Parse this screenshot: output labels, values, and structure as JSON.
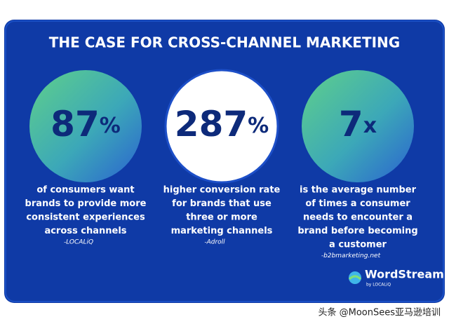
{
  "header": {
    "title": "THE CASE FOR CROSS-CHANNEL MARKETING"
  },
  "stats": [
    {
      "number": "87",
      "unit": "%",
      "lines": [
        "of consumers want",
        "brands to provide more",
        "consistent experiences",
        "across channels"
      ],
      "source": "-LOCALiQ"
    },
    {
      "number": "287",
      "unit": "%",
      "lines": [
        "higher conversion rate",
        "for brands that use",
        "three or more",
        "marketing channels"
      ],
      "source": "-Adroll"
    },
    {
      "number": "7",
      "unit": "x",
      "lines": [
        "is the average number",
        "of times a consumer",
        "needs to encounter a",
        "brand before becoming",
        "a customer"
      ],
      "source": "-b2bmarketing.net"
    }
  ],
  "logo": {
    "name": "WordStream",
    "byline": "by LOCALiQ"
  },
  "watermark": "头条 @MoonSees亚马逊培训"
}
